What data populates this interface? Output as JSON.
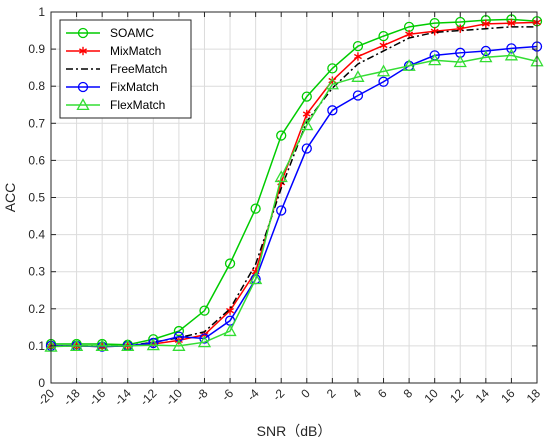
{
  "chart_data": {
    "type": "line",
    "title": "",
    "xlabel": "SNR（dB）",
    "ylabel": "ACC",
    "xlim": [
      -20,
      18
    ],
    "ylim": [
      0,
      1
    ],
    "x": [
      -20,
      -18,
      -16,
      -14,
      -12,
      -10,
      -8,
      -6,
      -4,
      -2,
      0,
      2,
      4,
      6,
      8,
      10,
      12,
      14,
      16,
      18
    ],
    "x_ticks": [
      "-20",
      "-18",
      "-16",
      "-14",
      "-12",
      "-10",
      "-8",
      "-6",
      "-4",
      "-2",
      "0",
      "2",
      "4",
      "6",
      "8",
      "10",
      "12",
      "14",
      "16",
      "18"
    ],
    "y_ticks": [
      "0",
      "0.1",
      "0.2",
      "0.3",
      "0.4",
      "0.5",
      "0.6",
      "0.7",
      "0.8",
      "0.9",
      "1"
    ],
    "grid": true,
    "legend_position": "top-left",
    "series": [
      {
        "name": "SOAMC",
        "color": "#00cc00",
        "marker": "circle",
        "dash": "solid",
        "values": [
          0.105,
          0.105,
          0.105,
          0.103,
          0.118,
          0.14,
          0.195,
          0.322,
          0.47,
          0.667,
          0.772,
          0.848,
          0.908,
          0.935,
          0.96,
          0.97,
          0.973,
          0.978,
          0.98,
          0.975
        ]
      },
      {
        "name": "MixMatch",
        "color": "#ff0000",
        "marker": "asterisk",
        "dash": "solid",
        "values": [
          0.1,
          0.1,
          0.098,
          0.1,
          0.105,
          0.115,
          0.13,
          0.195,
          0.3,
          0.54,
          0.725,
          0.815,
          0.88,
          0.91,
          0.94,
          0.948,
          0.955,
          0.968,
          0.97,
          0.972
        ]
      },
      {
        "name": "FreeMatch",
        "color": "#000000",
        "marker": "none",
        "dash": "dashdot",
        "values": [
          0.1,
          0.1,
          0.1,
          0.1,
          0.11,
          0.122,
          0.138,
          0.2,
          0.32,
          0.525,
          0.705,
          0.795,
          0.86,
          0.895,
          0.93,
          0.945,
          0.95,
          0.955,
          0.96,
          0.96
        ]
      },
      {
        "name": "FixMatch",
        "color": "#0000ff",
        "marker": "circle",
        "dash": "solid",
        "values": [
          0.1,
          0.1,
          0.098,
          0.1,
          0.108,
          0.125,
          0.12,
          0.168,
          0.28,
          0.465,
          0.632,
          0.735,
          0.775,
          0.812,
          0.855,
          0.883,
          0.89,
          0.895,
          0.902,
          0.907
        ]
      },
      {
        "name": "FlexMatch",
        "color": "#33dd33",
        "marker": "triangle",
        "dash": "solid",
        "values": [
          0.098,
          0.1,
          0.1,
          0.1,
          0.102,
          0.1,
          0.11,
          0.14,
          0.28,
          0.555,
          0.695,
          0.805,
          0.825,
          0.84,
          0.855,
          0.87,
          0.865,
          0.878,
          0.883,
          0.867
        ]
      }
    ]
  }
}
